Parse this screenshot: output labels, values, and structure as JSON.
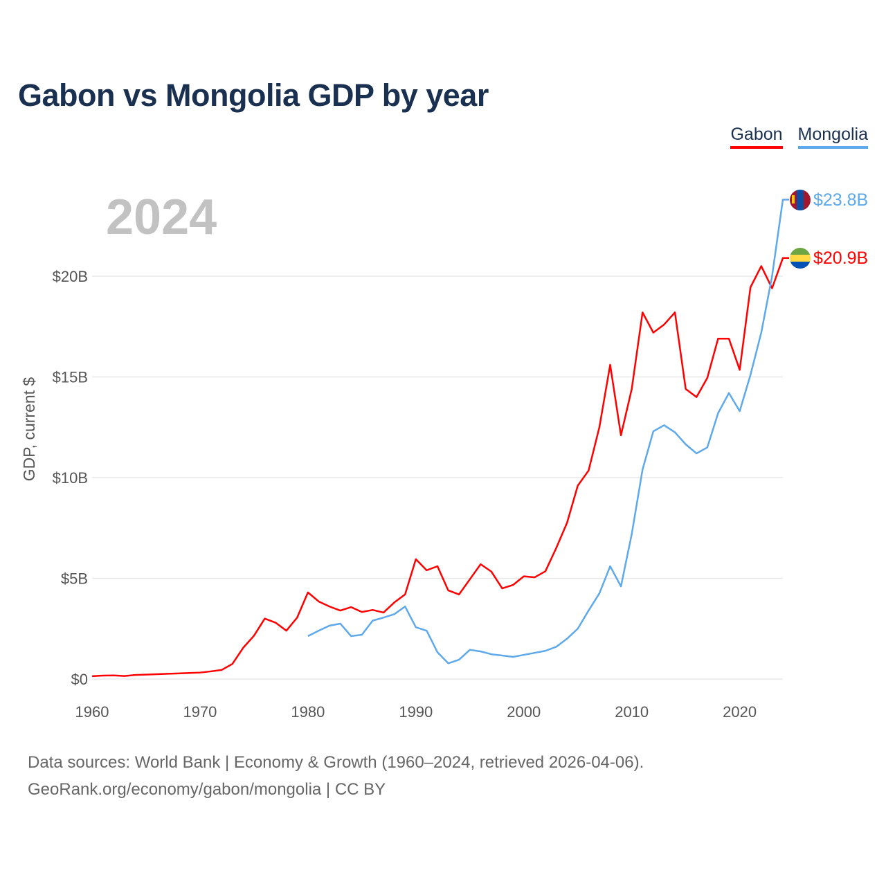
{
  "title": "Gabon vs Mongolia GDP by year",
  "footer": {
    "line1": "Data sources: World Bank | Economy & Growth (1960–2024, retrieved 2026-04-06).",
    "line2": "GeoRank.org/economy/gabon/mongolia | CC BY"
  },
  "chart_data": {
    "type": "line",
    "title": "Gabon vs Mongolia GDP by year",
    "year_label": "2024",
    "xlabel": "",
    "ylabel": "GDP, current $",
    "xlim": [
      1960,
      2024
    ],
    "ylim": [
      0,
      24
    ],
    "x_ticks": [
      1960,
      1970,
      1980,
      1990,
      2000,
      2010,
      2020
    ],
    "x_tick_labels": [
      "1960",
      "1970",
      "1980",
      "1990",
      "2000",
      "2010",
      "2020"
    ],
    "y_ticks": [
      0,
      5,
      10,
      15,
      20
    ],
    "y_tick_labels": [
      "$0",
      "$5B",
      "$10B",
      "$15B",
      "$20B"
    ],
    "grid": true,
    "legend_position": "top-right",
    "series": [
      {
        "name": "Gabon",
        "color": "#ff0000",
        "flag": "gabon-flag",
        "end_label": "$20.9B",
        "start_year": 1960,
        "values": [
          0.14,
          0.17,
          0.18,
          0.15,
          0.2,
          0.22,
          0.24,
          0.26,
          0.28,
          0.3,
          0.32,
          0.38,
          0.45,
          0.75,
          1.55,
          2.15,
          3.0,
          2.8,
          2.4,
          3.05,
          4.3,
          3.85,
          3.6,
          3.4,
          3.57,
          3.33,
          3.43,
          3.3,
          3.8,
          4.2,
          5.95,
          5.4,
          5.6,
          4.4,
          4.2,
          4.95,
          5.7,
          5.33,
          4.5,
          4.67,
          5.1,
          5.05,
          5.35,
          6.5,
          7.75,
          9.6,
          10.35,
          12.5,
          15.6,
          12.1,
          14.4,
          18.2,
          17.2,
          17.6,
          18.2,
          14.4,
          14.0,
          14.95,
          16.9,
          16.9,
          15.35,
          19.45,
          20.5,
          19.4,
          20.9
        ]
      },
      {
        "name": "Mongolia",
        "color": "#5ea8ec",
        "flag": "mongolia-flag",
        "end_label": "$23.8B",
        "start_year": 1980,
        "values": [
          2.13,
          2.4,
          2.65,
          2.75,
          2.13,
          2.2,
          2.9,
          3.05,
          3.22,
          3.6,
          2.57,
          2.4,
          1.33,
          0.78,
          0.96,
          1.45,
          1.37,
          1.23,
          1.17,
          1.1,
          1.2,
          1.3,
          1.4,
          1.6,
          2.0,
          2.5,
          3.4,
          4.25,
          5.6,
          4.6,
          7.2,
          10.4,
          12.3,
          12.6,
          12.25,
          11.65,
          11.2,
          11.5,
          13.2,
          14.2,
          13.3,
          15.1,
          17.2,
          20.0,
          23.8
        ]
      }
    ]
  }
}
